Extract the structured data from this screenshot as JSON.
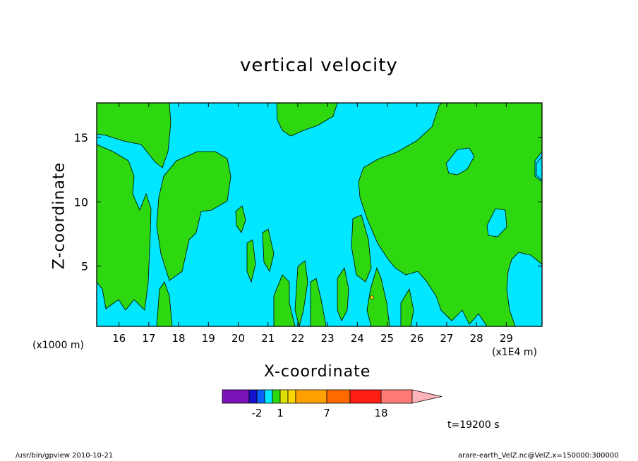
{
  "chart_data": {
    "type": "heatmap",
    "title": "vertical velocity",
    "xlabel": "X-coordinate",
    "ylabel": "Z-coordinate",
    "x_unit_left": "(x1000 m)",
    "x_unit_right": "(x1E4 m)",
    "x_ticks": [
      "16",
      "17",
      "18",
      "19",
      "20",
      "21",
      "22",
      "23",
      "24",
      "25",
      "26",
      "27",
      "28",
      "29"
    ],
    "x_tick_values": [
      16,
      17,
      18,
      19,
      20,
      21,
      22,
      23,
      24,
      25,
      26,
      27,
      28,
      29
    ],
    "y_ticks": [
      "5",
      "10",
      "15"
    ],
    "y_tick_values": [
      5,
      10,
      15
    ],
    "xlim": [
      15.25,
      30.2
    ],
    "ylim": [
      0.3,
      17.7
    ],
    "colorbar": {
      "colors": [
        "#7a12b8",
        "#1411cf",
        "#0b5ffb",
        "#00e7ff",
        "#2dd80f",
        "#dddf00",
        "#ffd500",
        "#ffa000",
        "#ff6900",
        "#ff1e14",
        "#ff7a74",
        "#ffb3bb"
      ],
      "tick_labels": [
        "-2",
        "1",
        "7",
        "18"
      ]
    },
    "time_label": "t=19200 s",
    "fill_low": "#00e7ff",
    "fill_high": "#2dd80f"
  },
  "footer": {
    "left": "/usr/bin/gpview   2010-10-21",
    "right": "arare-earth_VelZ.nc@VelZ,x=150000:300000"
  }
}
